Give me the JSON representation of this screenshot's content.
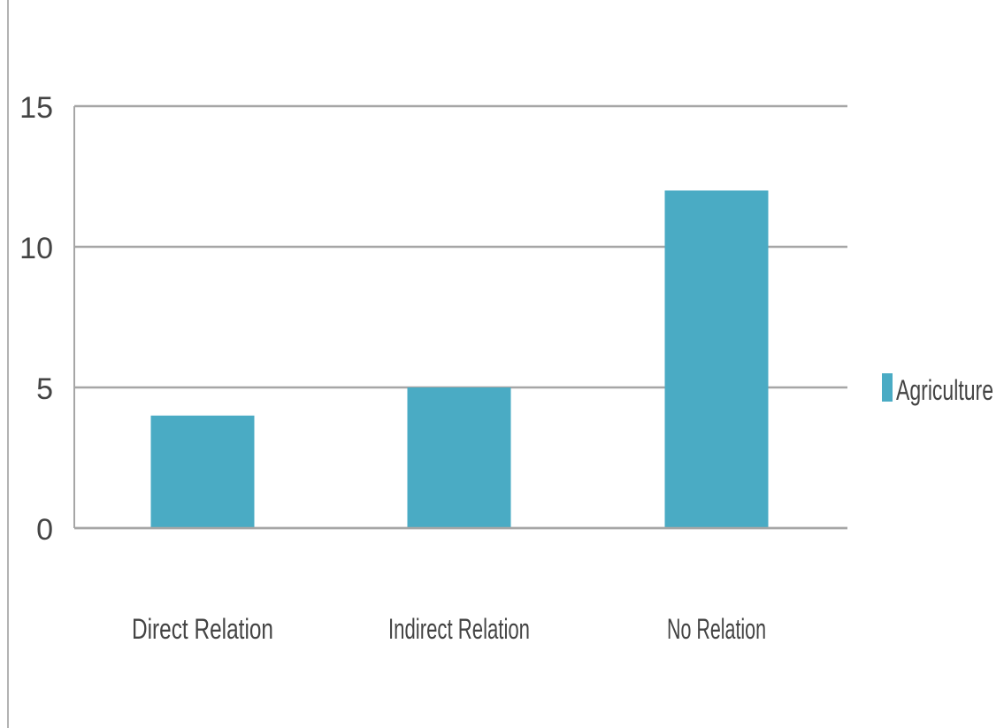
{
  "chart_data": {
    "type": "bar",
    "title": "",
    "xlabel": "",
    "ylabel": "",
    "categories": [
      "Direct Relation",
      "Indirect Relation",
      "No Relation"
    ],
    "series": [
      {
        "name": "Agriculture",
        "values": [
          4,
          5,
          12
        ],
        "color": "#4aabc4"
      }
    ],
    "ylim": [
      0,
      15
    ],
    "yticks": [
      0,
      5,
      10,
      15
    ],
    "grid": true,
    "legend": "right",
    "colors": {
      "grid": "#a6a6a6",
      "axis": "#a6a6a6",
      "text": "#444444",
      "frame": "#9a9a9a"
    }
  }
}
